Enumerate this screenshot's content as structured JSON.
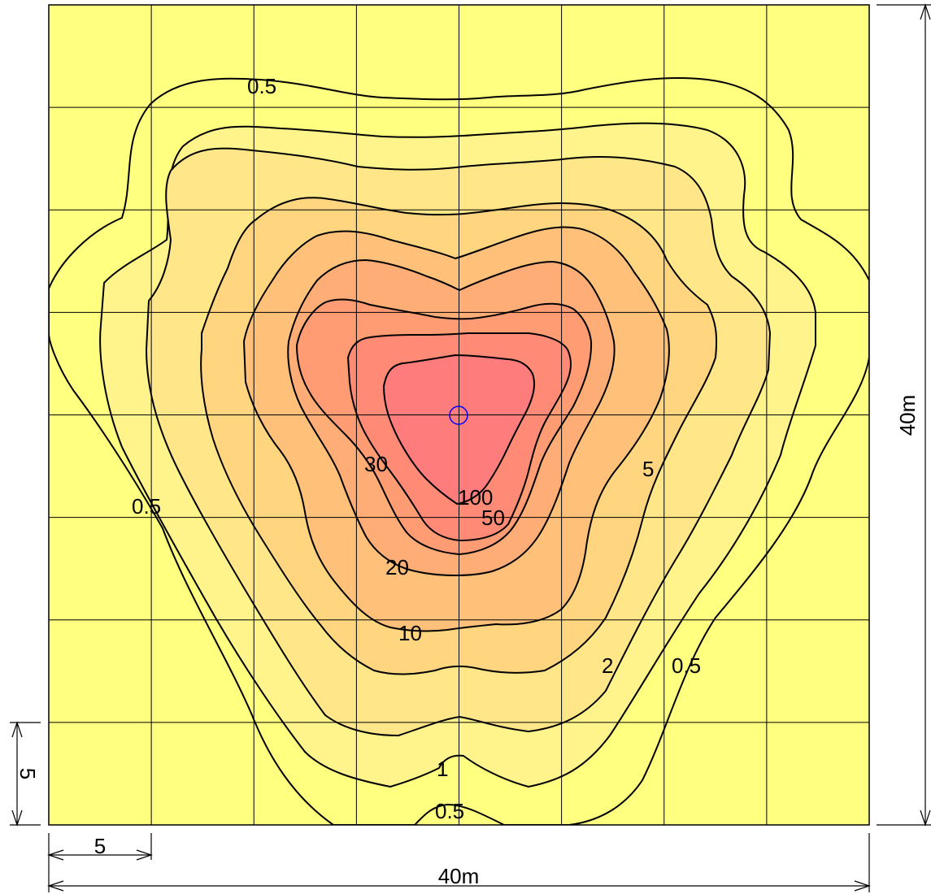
{
  "plot": {
    "center_marker": "light-source-circle-icon",
    "colors": {
      "background": "#ffff80",
      "level_0_5": "#ffff80",
      "level_1": "#fff38c",
      "level_2": "#ffe688",
      "level_5": "#ffd580",
      "level_10": "#ffc07a",
      "level_20": "#ffad76",
      "level_30": "#ff9c74",
      "level_50": "#ff8a76",
      "level_100": "#ff7c7c",
      "grid": "#000000",
      "center_marker": "#0000ff"
    },
    "contour_labels": [
      {
        "id": "0.5-top",
        "text": "0.5"
      },
      {
        "id": "0.5-left",
        "text": "0.5"
      },
      {
        "id": "0.5-right",
        "text": "0.5"
      },
      {
        "id": "0.5-bottom",
        "text": "0.5"
      },
      {
        "id": "1",
        "text": "1"
      },
      {
        "id": "2",
        "text": "2"
      },
      {
        "id": "5",
        "text": "5"
      },
      {
        "id": "10",
        "text": "10"
      },
      {
        "id": "20",
        "text": "20"
      },
      {
        "id": "30",
        "text": "30"
      },
      {
        "id": "50",
        "text": "50"
      },
      {
        "id": "100",
        "text": "100"
      }
    ]
  },
  "dimensions": {
    "width_total": "40m",
    "height_total": "40m",
    "grid_width": "5",
    "grid_height": "5"
  }
}
